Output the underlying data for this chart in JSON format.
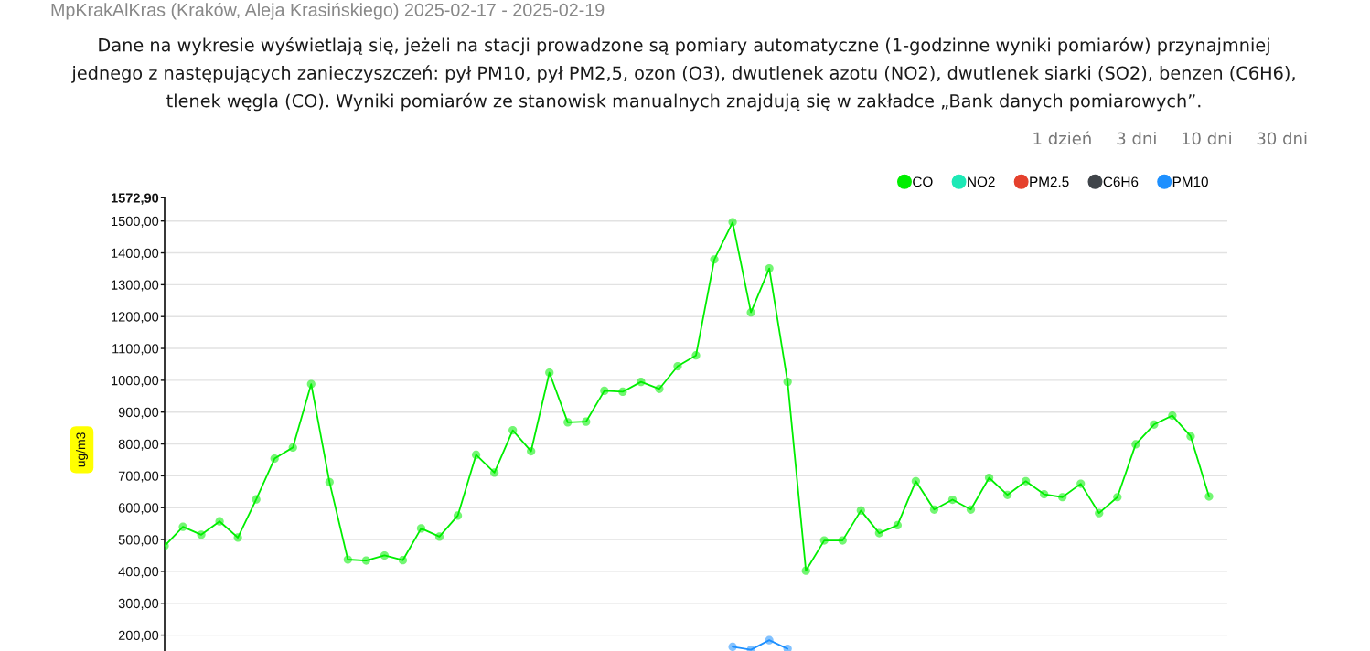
{
  "chart_data": {
    "type": "line",
    "title": "MpKrakAlKras (Kraków, Aleja Krasińskiego) 2025-02-17 - 2025-02-19",
    "subtitle": "Dane na wykresie wyświetlają się, jeżeli na stacji prowadzone są pomiary automatyczne (1-godzinne wyniki pomiarów) przynajmniej\njednego z następujących zanieczyszczeń: pył PM10, pył PM2,5, ozon (O3), dwutlenek azotu (NO2), dwutlenek siarki (SO2), benzen (C6H6),\ntlenek węgla (CO). Wyniki pomiarów ze stanowisk manualnych znajdują się w zakładce „Bank danych pomiarowych”.",
    "ylabel": "ug/m3",
    "annotations": [
      "1 dzień",
      "3 dni",
      "10 dni",
      "30 dni"
    ],
    "categories": [
      null,
      null,
      null,
      null,
      null,
      null,
      null,
      null,
      null,
      null,
      null,
      null,
      null,
      null,
      null,
      null,
      null,
      null,
      null,
      null,
      null,
      null,
      null,
      null,
      null,
      null,
      null,
      null,
      null,
      null,
      null,
      null,
      null,
      null,
      null,
      null,
      null,
      null,
      null,
      null,
      null,
      null,
      null,
      null,
      null,
      null,
      null,
      null,
      null,
      null,
      null,
      null,
      null,
      null,
      null,
      null,
      null,
      null
    ],
    "series": [
      {
        "name": "CO",
        "color": "#00ee00",
        "values": [
          480,
          540,
          515,
          557,
          506,
          626,
          754,
          789,
          988,
          680,
          437,
          434,
          450,
          435,
          535,
          509,
          575,
          766,
          710,
          843,
          777,
          1024,
          868,
          870,
          967,
          964,
          995,
          973,
          1044,
          1078,
          1379,
          1496,
          1213,
          1351,
          995,
          402,
          497,
          497,
          591,
          520,
          545,
          683,
          594,
          625,
          594,
          694,
          640,
          683,
          642,
          633,
          675,
          583,
          633,
          799,
          861,
          889,
          824,
          635
        ]
      },
      {
        "name": "NO2",
        "color": "#1de9b6",
        "values": [
          null,
          null,
          null,
          null,
          null,
          null,
          null,
          null,
          null,
          null,
          null,
          null,
          null,
          null,
          null,
          null,
          null,
          null,
          null,
          null,
          null,
          null,
          null,
          null,
          null,
          null,
          null,
          null,
          null,
          null,
          null,
          null,
          null,
          null,
          null,
          null,
          null,
          null,
          null,
          null,
          null,
          null,
          null,
          null,
          null,
          null,
          null,
          null,
          null,
          null,
          null,
          null,
          null,
          null,
          null,
          null,
          null,
          null
        ]
      },
      {
        "name": "PM2.5",
        "color": "#e5412d",
        "values": [
          null,
          null,
          null,
          null,
          null,
          null,
          null,
          null,
          null,
          null,
          null,
          null,
          null,
          null,
          null,
          null,
          null,
          null,
          null,
          null,
          null,
          null,
          null,
          null,
          null,
          null,
          null,
          null,
          null,
          null,
          null,
          null,
          null,
          null,
          null,
          null,
          null,
          null,
          null,
          null,
          null,
          null,
          null,
          null,
          null,
          null,
          null,
          null,
          null,
          null,
          null,
          null,
          null,
          null,
          null,
          null,
          null,
          null
        ]
      },
      {
        "name": "C6H6",
        "color": "#40454a",
        "values": [
          null,
          null,
          null,
          null,
          null,
          null,
          null,
          null,
          null,
          null,
          null,
          null,
          null,
          null,
          null,
          null,
          null,
          null,
          null,
          null,
          null,
          null,
          null,
          null,
          null,
          null,
          null,
          null,
          null,
          null,
          null,
          null,
          null,
          null,
          null,
          null,
          null,
          null,
          null,
          null,
          null,
          null,
          null,
          null,
          null,
          null,
          null,
          null,
          null,
          null,
          null,
          null,
          null,
          null,
          null,
          null,
          null,
          null
        ]
      },
      {
        "name": "PM10",
        "color": "#1e90ff",
        "values": [
          null,
          null,
          null,
          null,
          null,
          null,
          null,
          null,
          null,
          null,
          null,
          null,
          null,
          null,
          null,
          null,
          null,
          null,
          null,
          null,
          null,
          null,
          null,
          null,
          null,
          null,
          null,
          null,
          null,
          null,
          null,
          163,
          154,
          184,
          157,
          null,
          null,
          null,
          null,
          null,
          null,
          null,
          null,
          null,
          null,
          null,
          null,
          null,
          null,
          null,
          null,
          null,
          null,
          null,
          null,
          null,
          null,
          null
        ]
      }
    ],
    "ylim": [
      150,
      1572.9
    ],
    "yticks": [
      {
        "value": 200,
        "label": "200,00"
      },
      {
        "value": 300,
        "label": "300,00"
      },
      {
        "value": 400,
        "label": "400,00"
      },
      {
        "value": 500,
        "label": "500,00"
      },
      {
        "value": 600,
        "label": "600,00"
      },
      {
        "value": 700,
        "label": "700,00"
      },
      {
        "value": 800,
        "label": "800,00"
      },
      {
        "value": 900,
        "label": "900,00"
      },
      {
        "value": 1000,
        "label": "1000,00"
      },
      {
        "value": 1100,
        "label": "1100,00"
      },
      {
        "value": 1200,
        "label": "1200,00"
      },
      {
        "value": 1300,
        "label": "1300,00"
      },
      {
        "value": 1400,
        "label": "1400,00"
      },
      {
        "value": 1500,
        "label": "1500,00"
      },
      {
        "value": 1572.9,
        "label": "1572,90"
      }
    ],
    "grid": "y",
    "legend": "top right",
    "marker": "circle",
    "line_style": "solid"
  }
}
